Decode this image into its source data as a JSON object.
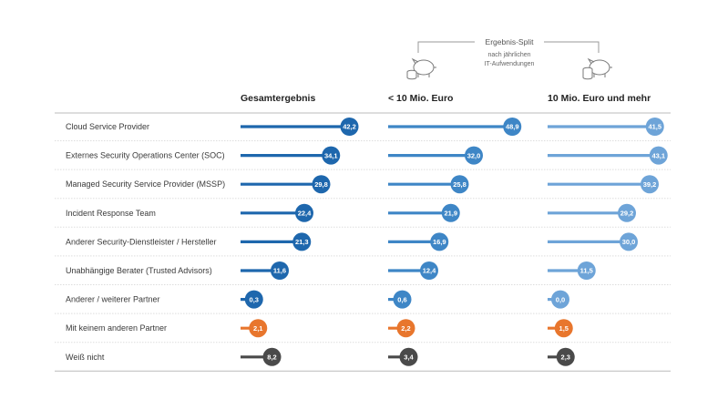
{
  "chart_data": {
    "type": "bar",
    "orientation": "horizontal",
    "split_title": "Ergebnis-Split",
    "split_subtitle_lines": [
      "nach jährlichen",
      "IT-Aufwendungen"
    ],
    "categories": [
      "Cloud Service Provider",
      "Externes Security Operations Center (SOC)",
      "Managed Security Service Provider (MSSP)",
      "Incident Response Team",
      "Anderer Security-Dienstleister / Hersteller",
      "Unabhängige Berater (Trusted Advisors)",
      "Anderer / weiterer Partner",
      "Mit keinem anderen Partner",
      "Weiß nicht"
    ],
    "series": [
      {
        "name": "Gesamtergebnis",
        "values": [
          42.2,
          34.1,
          29.8,
          22.4,
          21.3,
          11.6,
          0.3,
          2.1,
          8.2
        ],
        "labels": [
          "42,2",
          "34,1",
          "29,8",
          "22,4",
          "21,3",
          "11,6",
          "0,3",
          "2,1",
          "8,2"
        ]
      },
      {
        "name": "< 10 Mio. Euro",
        "values": [
          48.9,
          32.0,
          25.8,
          21.9,
          16.9,
          12.4,
          0.6,
          2.2,
          3.4
        ],
        "labels": [
          "48,9",
          "32,0",
          "25,8",
          "21,9",
          "16,9",
          "12,4",
          "0,6",
          "2,2",
          "3,4"
        ]
      },
      {
        "name": "10 Mio. Euro und mehr",
        "values": [
          41.5,
          43.1,
          39.2,
          29.2,
          30.0,
          11.5,
          0.0,
          1.5,
          2.3
        ],
        "labels": [
          "41,5",
          "43,1",
          "39,2",
          "29,2",
          "30,0",
          "11,5",
          "0,0",
          "1,5",
          "2,3"
        ]
      }
    ],
    "xlim": [
      0,
      50
    ],
    "colors": {
      "gesamt": "#1e67ad",
      "small": "#3e86c6",
      "large": "#6ea4d8",
      "orange": "#e8762d",
      "gray": "#4a4a4a",
      "icon": "#7a7a7a",
      "gridline": "#dddddd"
    },
    "icons": [
      "piggy-bank-coins-icon",
      "piggy-bank-coins-icon"
    ]
  }
}
